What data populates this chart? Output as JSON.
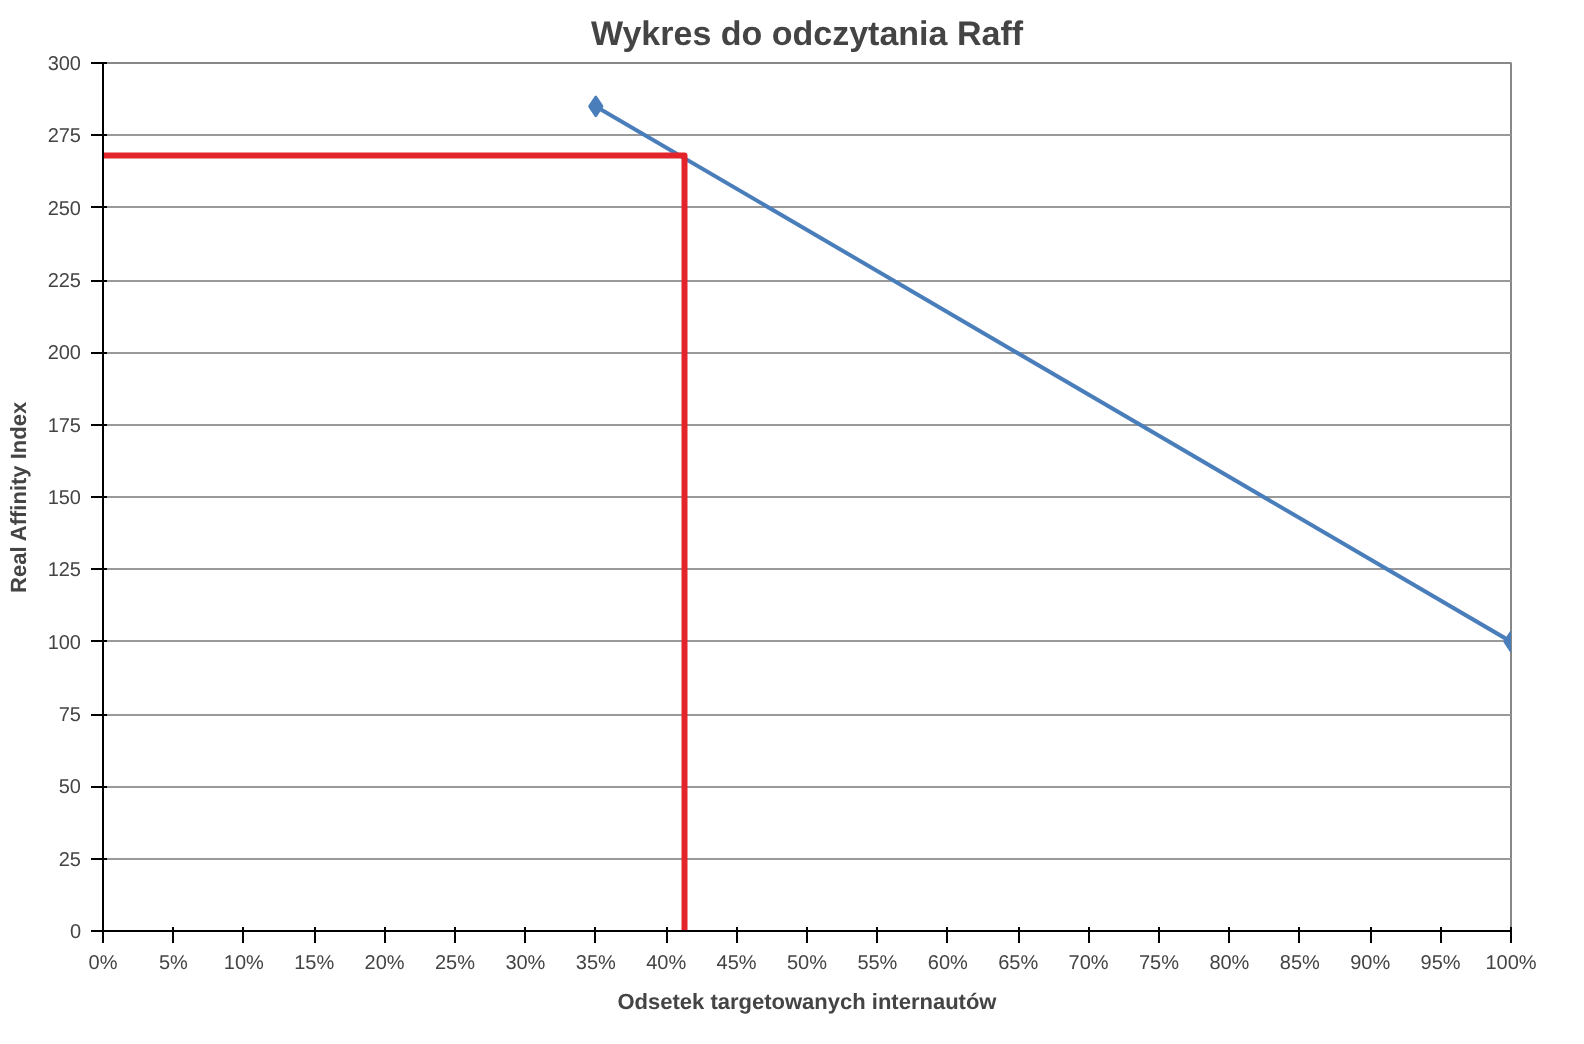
{
  "chart_data": {
    "type": "line",
    "title": "Wykres do odczytania Raff",
    "xlabel": "Odsetek targetowanych internautów",
    "ylabel": "Real Affinity Index",
    "series": [
      {
        "color": "#4a7ebb",
        "x": [
          35,
          100
        ],
        "values": [
          285,
          100
        ],
        "marker": "diamond"
      },
      {
        "color": "#e3242b",
        "x": [
          0,
          41.3,
          41.3
        ],
        "values": [
          268,
          268,
          0
        ],
        "marker": "none"
      }
    ],
    "xlim": [
      0,
      100
    ],
    "ylim": [
      0,
      300
    ],
    "xticks": [
      {
        "value": 0,
        "label": "0%"
      },
      {
        "value": 5,
        "label": "5%"
      },
      {
        "value": 10,
        "label": "10%"
      },
      {
        "value": 15,
        "label": "15%"
      },
      {
        "value": 20,
        "label": "20%"
      },
      {
        "value": 25,
        "label": "25%"
      },
      {
        "value": 30,
        "label": "30%"
      },
      {
        "value": 35,
        "label": "35%"
      },
      {
        "value": 40,
        "label": "40%"
      },
      {
        "value": 45,
        "label": "45%"
      },
      {
        "value": 50,
        "label": "50%"
      },
      {
        "value": 55,
        "label": "55%"
      },
      {
        "value": 60,
        "label": "60%"
      },
      {
        "value": 65,
        "label": "65%"
      },
      {
        "value": 70,
        "label": "70%"
      },
      {
        "value": 75,
        "label": "75%"
      },
      {
        "value": 80,
        "label": "80%"
      },
      {
        "value": 85,
        "label": "85%"
      },
      {
        "value": 90,
        "label": "90%"
      },
      {
        "value": 95,
        "label": "95%"
      },
      {
        "value": 100,
        "label": "100%"
      }
    ],
    "yticks": [
      0,
      25,
      50,
      75,
      100,
      125,
      150,
      175,
      200,
      225,
      250,
      275,
      300
    ],
    "grid": "y"
  }
}
